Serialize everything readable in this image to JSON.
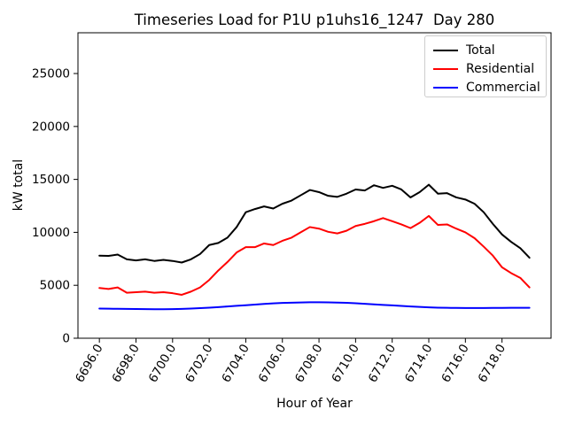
{
  "chart_data": {
    "type": "line",
    "title": "Timeseries Load for P1U p1uhs16_1247  Day 280",
    "xlabel": "Hour of Year",
    "ylabel": "kW total",
    "xlim": [
      6694.83,
      6720.68
    ],
    "ylim": [
      0,
      28850
    ],
    "grid": false,
    "legend_position": "upper right",
    "x_tick_rotation": 60,
    "xticks": [
      6696,
      6698,
      6700,
      6702,
      6704,
      6706,
      6708,
      6710,
      6712,
      6714,
      6716,
      6718
    ],
    "xtick_labels": [
      "6696.0",
      "6698.0",
      "6700.0",
      "6702.0",
      "6704.0",
      "6706.0",
      "6708.0",
      "6710.0",
      "6712.0",
      "6714.0",
      "6716.0",
      "6718.0"
    ],
    "yticks": [
      0,
      5000,
      10000,
      15000,
      20000,
      25000
    ],
    "ytick_labels": [
      "0",
      "5000",
      "10000",
      "15000",
      "20000",
      "25000"
    ],
    "x": [
      6696.0,
      6696.5,
      6697.0,
      6697.5,
      6698.0,
      6698.5,
      6699.0,
      6699.5,
      6700.0,
      6700.5,
      6701.0,
      6701.5,
      6702.0,
      6702.5,
      6703.0,
      6703.5,
      6704.0,
      6704.5,
      6705.0,
      6705.5,
      6706.0,
      6706.5,
      6707.0,
      6707.5,
      6708.0,
      6708.5,
      6709.0,
      6709.5,
      6710.0,
      6710.5,
      6711.0,
      6711.5,
      6712.0,
      6712.5,
      6713.0,
      6713.5,
      6714.0,
      6714.5,
      6715.0,
      6715.5,
      6716.0,
      6716.5,
      6717.0,
      6717.5,
      6718.0,
      6718.5,
      6719.0,
      6719.5
    ],
    "series": [
      {
        "name": "Total",
        "color": "#000000",
        "values": [
          7800,
          7780,
          7900,
          7450,
          7350,
          7450,
          7300,
          7400,
          7300,
          7150,
          7450,
          7950,
          8800,
          9000,
          9500,
          10500,
          11900,
          12200,
          12450,
          12250,
          12700,
          13000,
          13500,
          14000,
          13800,
          13450,
          13350,
          13650,
          14050,
          13950,
          14450,
          14200,
          14400,
          14050,
          13300,
          13800,
          14500,
          13650,
          13700,
          13300,
          13100,
          12700,
          11900,
          10800,
          9800,
          9100,
          8500,
          7600
        ]
      },
      {
        "name": "Residential",
        "color": "#ff0000",
        "values": [
          4750,
          4650,
          4800,
          4300,
          4350,
          4400,
          4300,
          4350,
          4250,
          4100,
          4400,
          4800,
          5500,
          6400,
          7200,
          8100,
          8600,
          8600,
          8950,
          8800,
          9200,
          9500,
          10000,
          10500,
          10350,
          10050,
          9900,
          10150,
          10600,
          10800,
          11050,
          11350,
          11050,
          10750,
          10400,
          10900,
          11550,
          10700,
          10750,
          10350,
          10000,
          9450,
          8650,
          7800,
          6700,
          6150,
          5700,
          4800
        ]
      },
      {
        "name": "Commercial",
        "color": "#0000ff",
        "values": [
          2800,
          2790,
          2780,
          2770,
          2760,
          2750,
          2740,
          2740,
          2750,
          2770,
          2800,
          2840,
          2890,
          2940,
          3000,
          3060,
          3120,
          3180,
          3240,
          3290,
          3330,
          3360,
          3380,
          3400,
          3400,
          3390,
          3370,
          3340,
          3300,
          3250,
          3200,
          3150,
          3100,
          3050,
          3000,
          2960,
          2920,
          2890,
          2870,
          2860,
          2850,
          2850,
          2850,
          2860,
          2860,
          2870,
          2870,
          2870
        ]
      }
    ]
  }
}
